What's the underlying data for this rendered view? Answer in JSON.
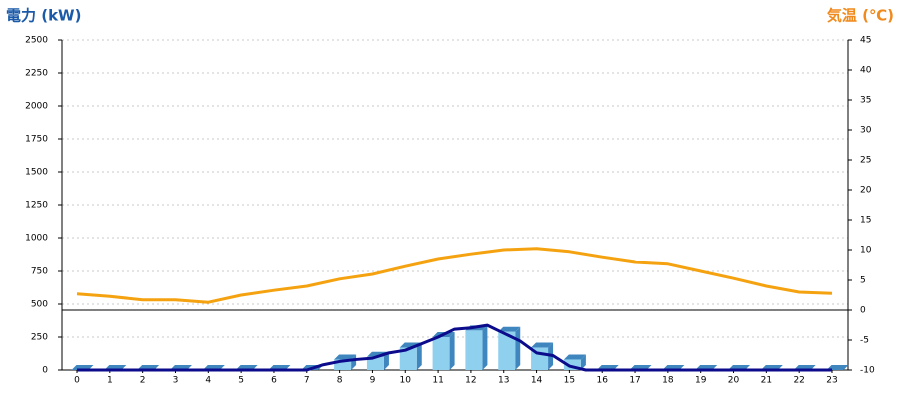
{
  "chart_data": {
    "type": "combo",
    "y_title": "電力 (kW)",
    "y2_title": "気温 (℃)",
    "y_title_color": "#1a5aa8",
    "y2_title_color": "#f08a1c",
    "categories": [
      "0",
      "1",
      "2",
      "3",
      "4",
      "5",
      "6",
      "7",
      "8",
      "9",
      "10",
      "11",
      "12",
      "13",
      "14",
      "15",
      "16",
      "17",
      "18",
      "19",
      "20",
      "21",
      "22",
      "23"
    ],
    "ylim": [
      0,
      2500
    ],
    "yticks": [
      0,
      250,
      500,
      750,
      1000,
      1250,
      1500,
      1750,
      2000,
      2250,
      2500
    ],
    "y2lim": [
      -10,
      45
    ],
    "y2ticks": [
      -10,
      -5,
      0,
      5,
      10,
      15,
      20,
      25,
      30,
      35,
      40,
      45
    ],
    "grid": true,
    "series": [
      {
        "type": "bar",
        "color": "#8fd0ee",
        "side_color": "#3f86bf",
        "values": [
          0,
          0,
          0,
          0,
          0,
          0,
          0,
          0,
          80,
          100,
          170,
          250,
          300,
          290,
          170,
          80,
          0,
          0,
          0,
          0,
          0,
          0,
          0,
          0
        ]
      },
      {
        "type": "line",
        "color": "#0b0b8c",
        "x": [
          0,
          0.5,
          1,
          1.5,
          2,
          2.5,
          3,
          3.5,
          4,
          4.5,
          5,
          5.5,
          6,
          6.5,
          7,
          7.5,
          8,
          8.5,
          9,
          9.5,
          10,
          10.5,
          11,
          11.5,
          12,
          12.5,
          13,
          13.5,
          14,
          14.5,
          15,
          15.5,
          16,
          16.5,
          17,
          17.5,
          18,
          18.5,
          19,
          19.5,
          20,
          20.5,
          21,
          21.5,
          22,
          22.5,
          23
        ],
        "values": [
          0,
          0,
          0,
          0,
          0,
          0,
          0,
          0,
          0,
          0,
          0,
          0,
          0,
          0,
          0,
          40,
          65,
          80,
          90,
          130,
          150,
          200,
          250,
          310,
          320,
          340,
          280,
          220,
          130,
          110,
          30,
          0,
          0,
          0,
          0,
          0,
          0,
          0,
          0,
          0,
          0,
          0,
          0,
          0,
          0,
          0,
          0
        ]
      },
      {
        "type": "line",
        "axis": "y2",
        "color": "#f5a210",
        "values": [
          2.7,
          2.3,
          1.7,
          1.7,
          1.3,
          2.5,
          3.3,
          4.0,
          5.2,
          6.0,
          7.3,
          8.5,
          9.3,
          10.0,
          10.2,
          9.7,
          8.8,
          8.0,
          7.7,
          6.5,
          5.3,
          4.0,
          3.0,
          2.8
        ]
      }
    ]
  }
}
